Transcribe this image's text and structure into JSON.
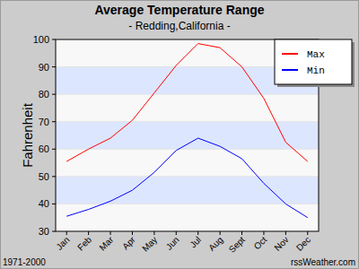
{
  "chart_data": {
    "type": "line",
    "title": "Average Temperature Range",
    "subtitle": "- Redding,California -",
    "ylabel": "Fahrenheit",
    "categories": [
      "Jan",
      "Feb",
      "Mar",
      "Apr",
      "May",
      "Jun",
      "Jul",
      "Aug",
      "Sept",
      "Oct",
      "Nov",
      "Dec"
    ],
    "series": [
      {
        "name": "Max",
        "color": "#ff0000",
        "values": [
          55.5,
          60,
          64,
          70.5,
          80.5,
          90.5,
          98.5,
          97,
          90,
          78.5,
          62.5,
          55.5
        ]
      },
      {
        "name": "Min",
        "color": "#0000ff",
        "values": [
          35.5,
          38,
          41,
          45,
          51.5,
          59.5,
          64,
          61,
          56.5,
          47.5,
          40,
          35
        ]
      }
    ],
    "ylim": [
      30,
      100
    ],
    "yticks": [
      30,
      40,
      50,
      60,
      70,
      80,
      90,
      100
    ],
    "grid": true,
    "legend": "upper-right",
    "annotations": [
      "1971-2000",
      "rssWeather.com"
    ]
  }
}
